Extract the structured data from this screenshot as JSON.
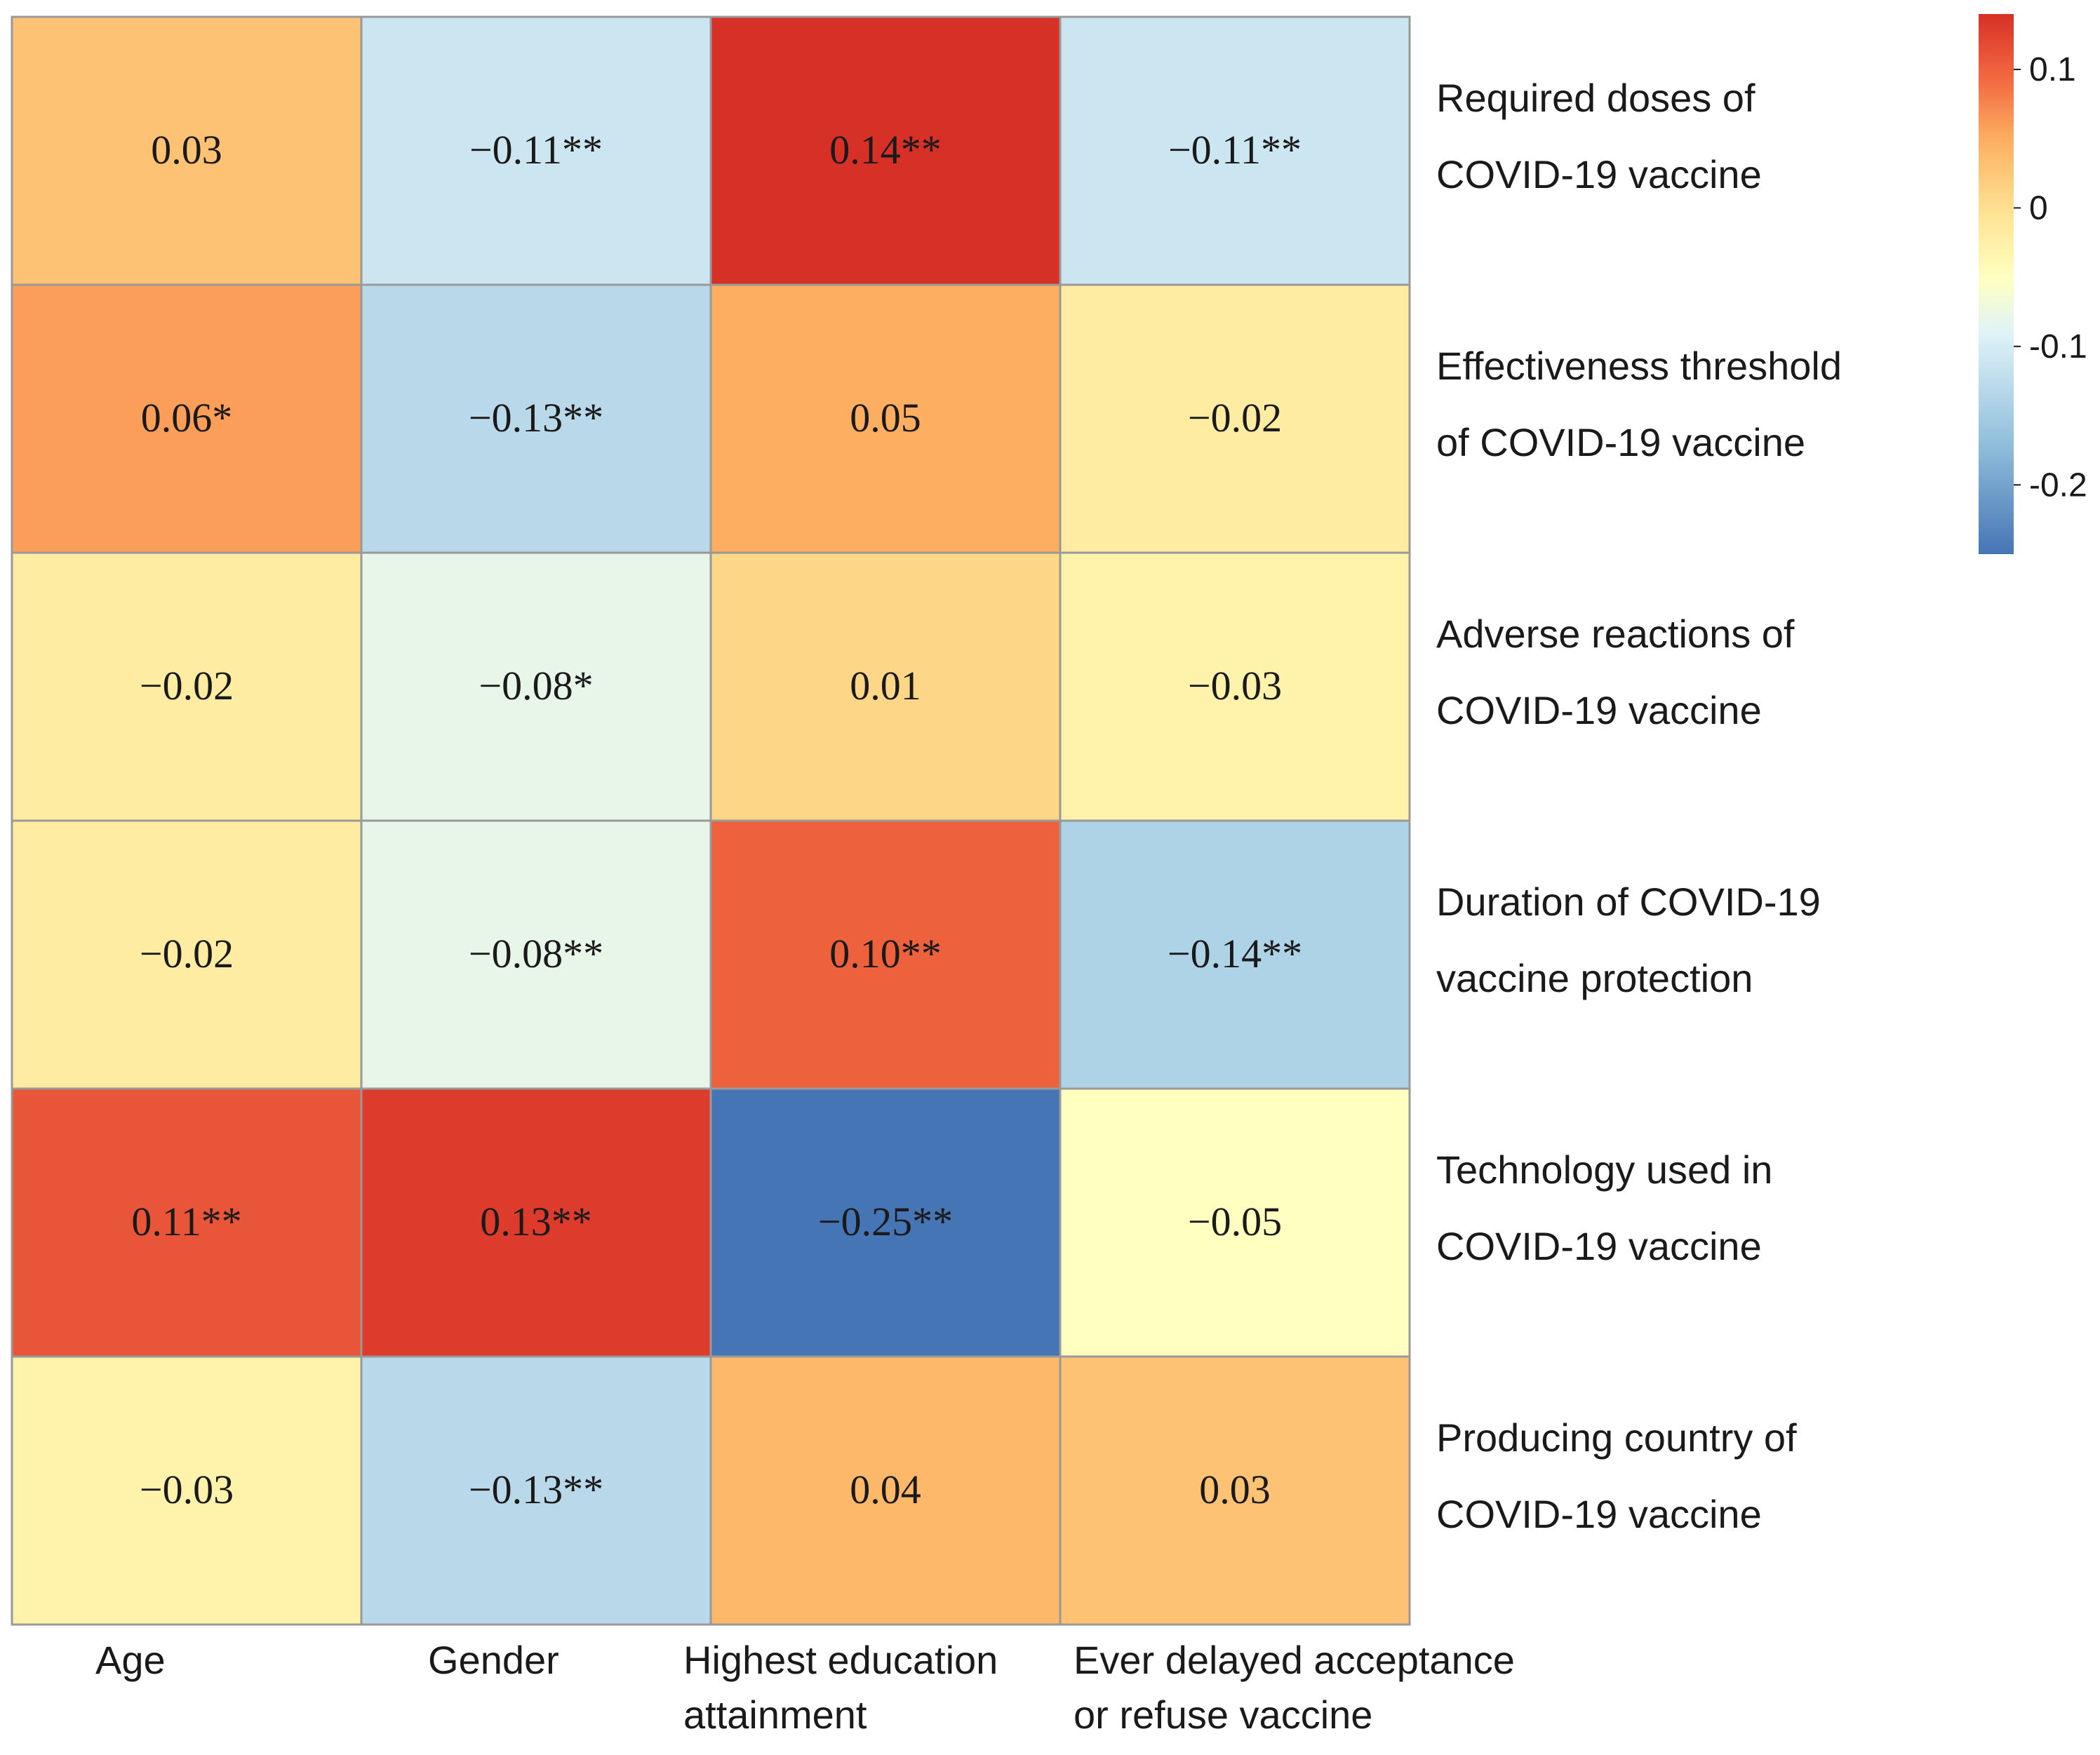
{
  "chart_data": {
    "type": "heatmap",
    "columns": [
      {
        "lines": [
          "Age"
        ]
      },
      {
        "lines": [
          "Gender"
        ]
      },
      {
        "lines": [
          "Highest education",
          "attainment"
        ]
      },
      {
        "lines": [
          "Ever delayed acceptance",
          "or refuse vaccine"
        ]
      }
    ],
    "rows": [
      {
        "lines": [
          "Required doses of",
          "COVID-19 vaccine"
        ]
      },
      {
        "lines": [
          "Effectiveness threshold",
          "of COVID-19  vaccine"
        ]
      },
      {
        "lines": [
          "Adverse reactions of",
          "COVID-19 vaccine"
        ]
      },
      {
        "lines": [
          "Duration of COVID-19",
          "vaccine  protection"
        ]
      },
      {
        "lines": [
          "Technology used in",
          "COVID-19 vaccine"
        ]
      },
      {
        "lines": [
          "Producing country of",
          "COVID-19 vaccine"
        ]
      }
    ],
    "values": [
      [
        0.03,
        -0.11,
        0.14,
        -0.11
      ],
      [
        0.06,
        -0.13,
        0.05,
        -0.02
      ],
      [
        -0.02,
        -0.08,
        0.01,
        -0.03
      ],
      [
        -0.02,
        -0.08,
        0.1,
        -0.14
      ],
      [
        0.11,
        0.13,
        -0.25,
        -0.05
      ],
      [
        -0.03,
        -0.13,
        0.04,
        0.03
      ]
    ],
    "labels": [
      [
        "0.03",
        "−0.11**",
        "0.14**",
        "−0.11**"
      ],
      [
        "0.06*",
        "−0.13**",
        "0.05",
        "−0.02"
      ],
      [
        "−0.02",
        "−0.08*",
        "0.01",
        "−0.03"
      ],
      [
        "−0.02",
        "−0.08**",
        "0.10**",
        "−0.14**"
      ],
      [
        "0.11**",
        "0.13**",
        "−0.25**",
        "−0.05"
      ],
      [
        "−0.03",
        "−0.13**",
        "0.04",
        "0.03"
      ]
    ],
    "colormap": {
      "stops": [
        {
          "value": -0.25,
          "color": "#4575b4"
        },
        {
          "value": -0.17,
          "color": "#91bfdb"
        },
        {
          "value": -0.09,
          "color": "#e0f3f8"
        },
        {
          "value": -0.05,
          "color": "#ffffbf"
        },
        {
          "value": 0.0,
          "color": "#fee090"
        },
        {
          "value": 0.05,
          "color": "#fdae61"
        },
        {
          "value": 0.09,
          "color": "#f46d43"
        },
        {
          "value": 0.14,
          "color": "#d73027"
        }
      ]
    },
    "legend": {
      "ticks": [
        {
          "value": 0.1,
          "label": "0.1"
        },
        {
          "value": 0.0,
          "label": "0"
        },
        {
          "value": -0.1,
          "label": "-0.1"
        },
        {
          "value": -0.2,
          "label": "-0.2"
        }
      ],
      "range": [
        -0.25,
        0.14
      ],
      "placement": "top-right"
    },
    "grid_color": "#999999"
  }
}
